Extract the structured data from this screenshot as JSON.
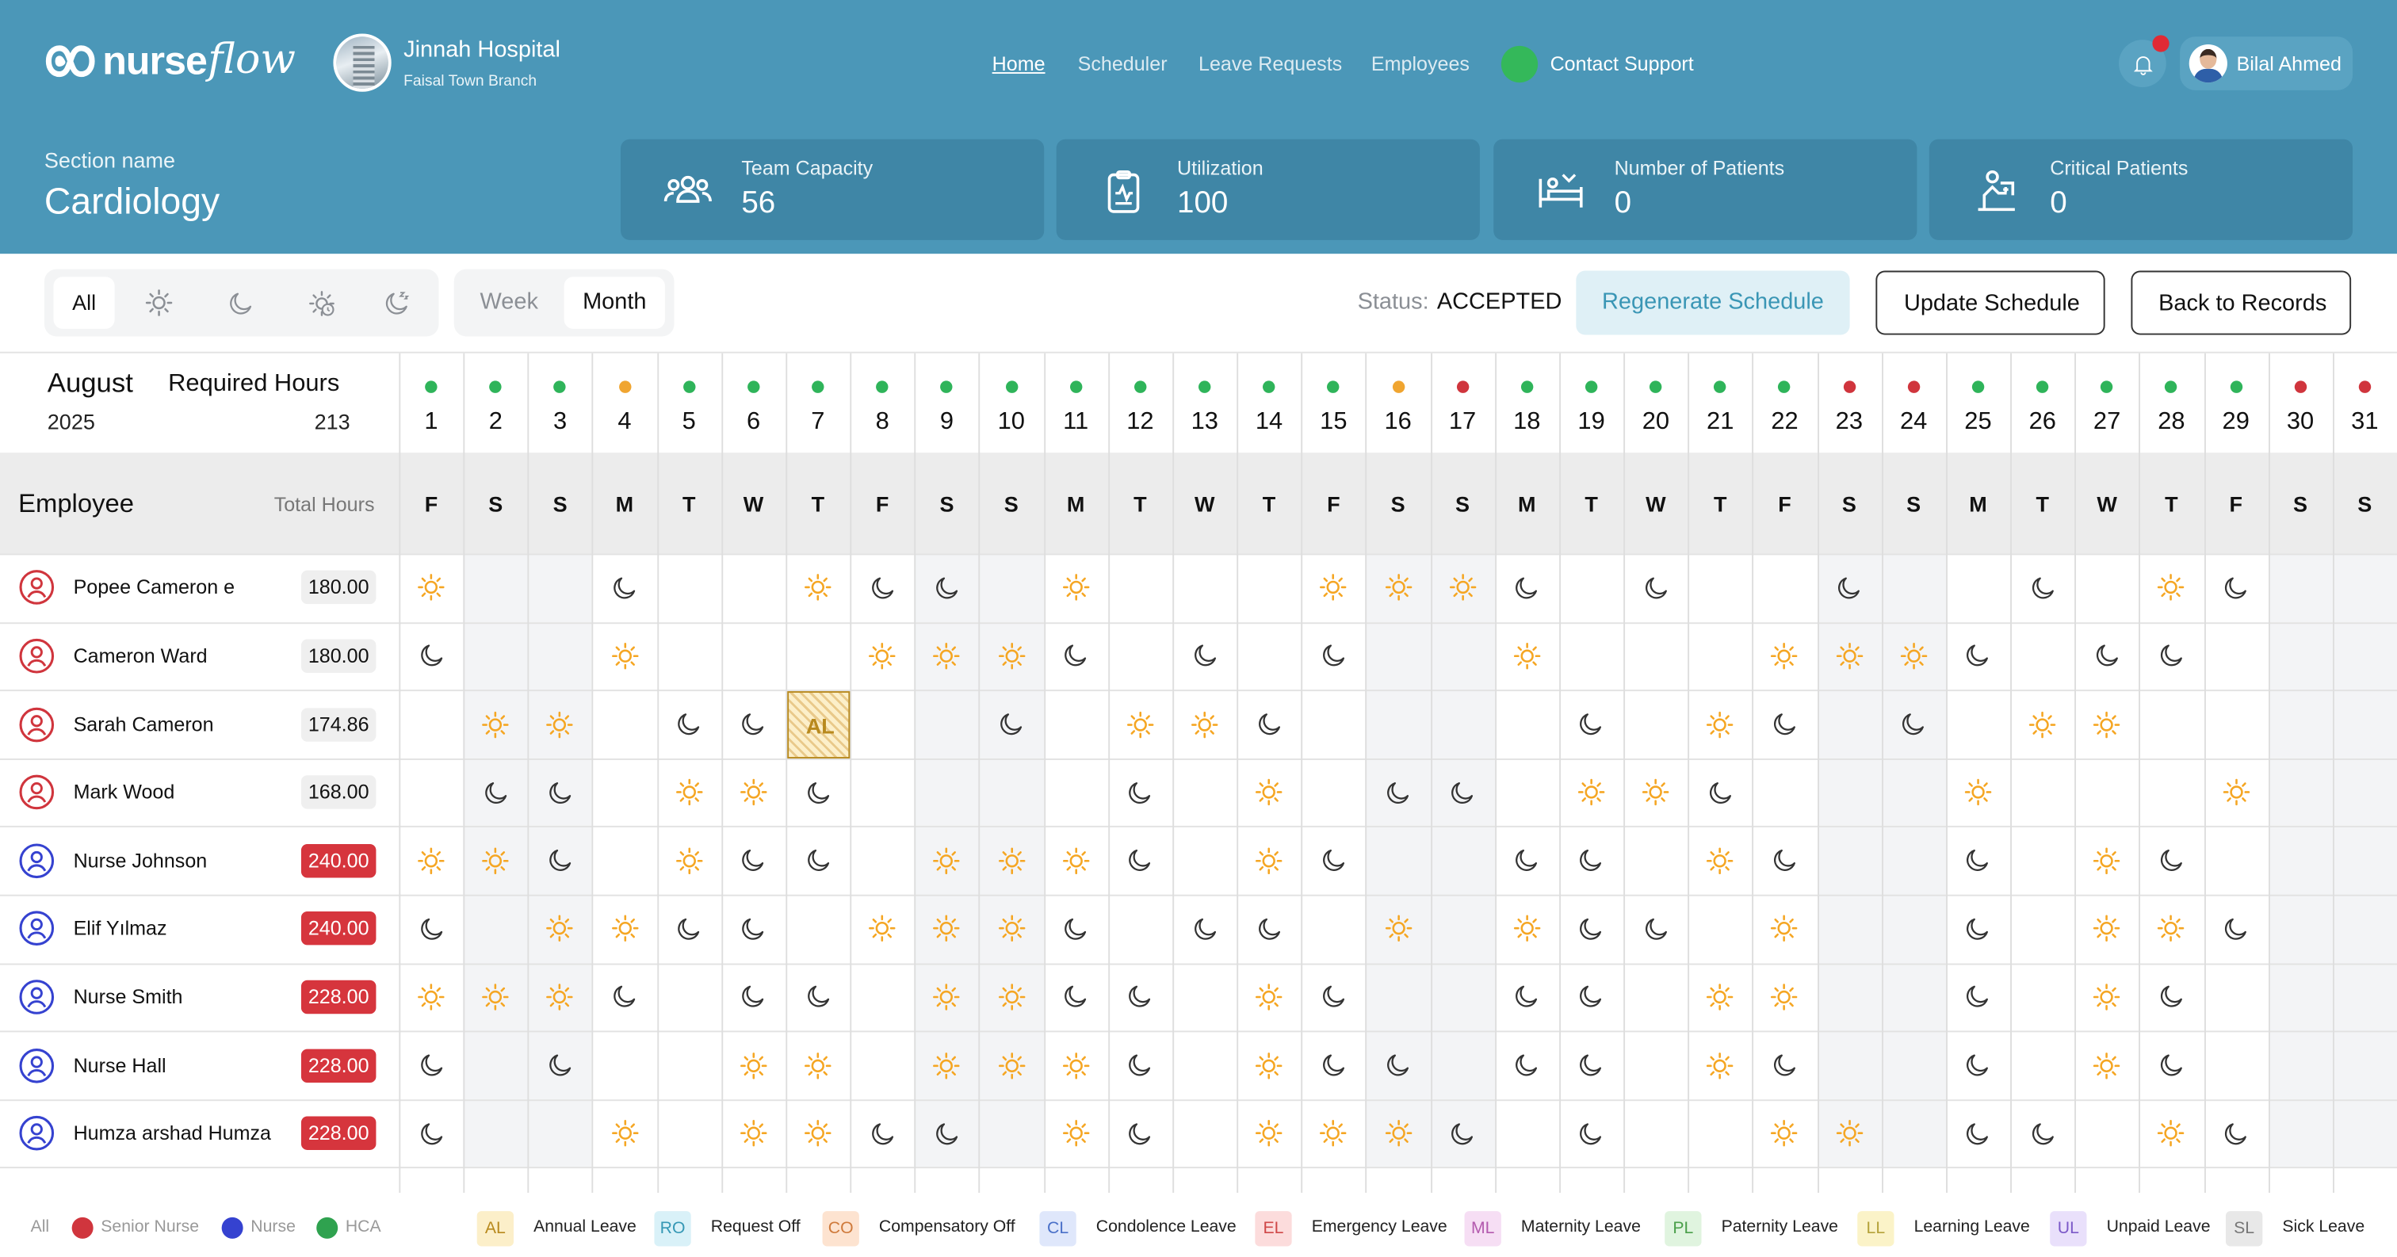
{
  "header": {
    "logo_a": "nurse",
    "logo_b": "flow",
    "hospital": "Jinnah Hospital",
    "branch": "Faisal Town Branch",
    "nav": [
      "Home",
      "Scheduler",
      "Leave Requests",
      "Employees"
    ],
    "support": "Contact Support",
    "user": "Bilal Ahmed"
  },
  "section": {
    "label": "Section name",
    "name": "Cardiology"
  },
  "stats": [
    {
      "label": "Team Capacity",
      "value": 56,
      "icon": "team"
    },
    {
      "label": "Utilization",
      "value": 100,
      "icon": "clipboard"
    },
    {
      "label": "Number of Patients",
      "value": 0,
      "icon": "bed"
    },
    {
      "label": "Critical Patients",
      "value": 0,
      "icon": "critical"
    }
  ],
  "toolbar": {
    "filter": "All",
    "views": [
      "Week",
      "Month"
    ],
    "active_view_index": 1,
    "status_label": "Status:",
    "status": "ACCEPTED",
    "buttons": [
      "Regenerate Schedule",
      "Update Schedule",
      "Back to Records"
    ]
  },
  "calendar": {
    "month": "August",
    "year": "2025",
    "required_label": "Required Hours",
    "required_hours": 213,
    "employee_label": "Employee",
    "total_label": "Total Hours",
    "days": [
      1,
      2,
      3,
      4,
      5,
      6,
      7,
      8,
      9,
      10,
      11,
      12,
      13,
      14,
      15,
      16,
      17,
      18,
      19,
      20,
      21,
      22,
      23,
      24,
      25,
      26,
      27,
      28,
      29,
      30,
      31
    ],
    "weekdays": [
      "F",
      "S",
      "S",
      "M",
      "T",
      "W",
      "T",
      "F",
      "S",
      "S",
      "M",
      "T",
      "W",
      "T",
      "F",
      "S",
      "S",
      "M",
      "T",
      "W",
      "T",
      "F",
      "S",
      "S",
      "M",
      "T",
      "W",
      "T",
      "F",
      "S",
      "S"
    ],
    "day_status": [
      "#2fb45a",
      "#2fb45a",
      "#2fb45a",
      "#f0a530",
      "#2fb45a",
      "#2fb45a",
      "#2fb45a",
      "#2fb45a",
      "#2fb45a",
      "#2fb45a",
      "#2fb45a",
      "#2fb45a",
      "#2fb45a",
      "#2fb45a",
      "#2fb45a",
      "#f0a530",
      "#d0353d",
      "#2fb45a",
      "#2fb45a",
      "#2fb45a",
      "#2fb45a",
      "#2fb45a",
      "#d0353d",
      "#d0353d",
      "#2fb45a",
      "#2fb45a",
      "#2fb45a",
      "#2fb45a",
      "#2fb45a",
      "#d0353d",
      "#d0353d"
    ],
    "column_colors": [
      "#ffffff",
      "#f3f4f6",
      "#f3f4f6",
      "#ffffff",
      "#ffffff",
      "#ffffff",
      "#ffffff",
      "#ffffff",
      "#f3f4f6",
      "#f3f4f6",
      "#ffffff",
      "#ffffff",
      "#ffffff",
      "#ffffff",
      "#ffffff",
      "#f3f4f6",
      "#f3f4f6",
      "#ffffff",
      "#ffffff",
      "#ffffff",
      "#ffffff",
      "#ffffff",
      "#f3f4f6",
      "#f3f4f6",
      "#ffffff",
      "#ffffff",
      "#ffffff",
      "#ffffff",
      "#ffffff",
      "#f3f4f6",
      "#f3f4f6"
    ]
  },
  "employees": [
    {
      "name": "Popee Cameron e",
      "hours": "180.00",
      "role_color": "#d0353d",
      "badge": "#efefef",
      "shifts": [
        "sun",
        null,
        null,
        "moon",
        null,
        null,
        "sun",
        "moon",
        "moon",
        null,
        "sun",
        null,
        null,
        null,
        "sun",
        "sun",
        "sun",
        "moon",
        null,
        "moon",
        null,
        null,
        "moon",
        null,
        null,
        "moon",
        null,
        "sun",
        "moon",
        null,
        null
      ]
    },
    {
      "name": "Cameron Ward",
      "hours": "180.00",
      "role_color": "#d0353d",
      "badge": "#efefef",
      "shifts": [
        "moon",
        null,
        null,
        "sun",
        null,
        null,
        null,
        "sun",
        "sun",
        "sun",
        "moon",
        null,
        "moon",
        null,
        "moon",
        null,
        null,
        "sun",
        null,
        null,
        null,
        "sun",
        "sun",
        "sun",
        "moon",
        null,
        "moon",
        "moon",
        null,
        null,
        null
      ]
    },
    {
      "name": "Sarah Cameron",
      "hours": "174.86",
      "role_color": "#d0353d",
      "badge": "#efefef",
      "shifts": [
        null,
        "sun",
        "sun",
        null,
        "moon",
        "moon",
        "AL",
        null,
        null,
        "moon",
        null,
        "sun",
        "sun",
        "moon",
        null,
        null,
        null,
        null,
        "moon",
        null,
        "sun",
        "moon",
        null,
        "moon",
        null,
        "sun",
        "sun",
        null,
        null,
        null,
        null
      ]
    },
    {
      "name": "Mark Wood",
      "hours": "168.00",
      "role_color": "#d0353d",
      "badge": "#efefef",
      "shifts": [
        null,
        "moon",
        "moon",
        null,
        "sun",
        "sun",
        "moon",
        null,
        null,
        null,
        null,
        "moon",
        null,
        "sun",
        null,
        "moon",
        "moon",
        null,
        "sun",
        "sun",
        "moon",
        null,
        null,
        null,
        "sun",
        null,
        null,
        null,
        "sun",
        null,
        null
      ]
    },
    {
      "name": "Nurse Johnson",
      "hours": "240.00",
      "role_color": "#3542d0",
      "badge": "#d6353d",
      "shifts": [
        "sun",
        "sun",
        "moon",
        null,
        "sun",
        "moon",
        "moon",
        null,
        "sun",
        "sun",
        "sun",
        "moon",
        null,
        "sun",
        "moon",
        null,
        null,
        "moon",
        "moon",
        null,
        "sun",
        "moon",
        null,
        null,
        "moon",
        null,
        "sun",
        "moon",
        null,
        null,
        null
      ]
    },
    {
      "name": "Elif Yılmaz",
      "hours": "240.00",
      "role_color": "#3542d0",
      "badge": "#d6353d",
      "shifts": [
        "moon",
        null,
        "sun",
        "sun",
        "moon",
        "moon",
        null,
        "sun",
        "sun",
        "sun",
        "moon",
        null,
        "moon",
        "moon",
        null,
        "sun",
        null,
        "sun",
        "moon",
        "moon",
        null,
        "sun",
        null,
        null,
        "moon",
        null,
        "sun",
        "sun",
        "moon",
        null,
        null
      ]
    },
    {
      "name": "Nurse Smith",
      "hours": "228.00",
      "role_color": "#3542d0",
      "badge": "#d6353d",
      "shifts": [
        "sun",
        "sun",
        "sun",
        "moon",
        null,
        "moon",
        "moon",
        null,
        "sun",
        "sun",
        "moon",
        "moon",
        null,
        "sun",
        "moon",
        null,
        null,
        "moon",
        "moon",
        null,
        "sun",
        "sun",
        null,
        null,
        "moon",
        null,
        "sun",
        "moon",
        null,
        null,
        null
      ]
    },
    {
      "name": "Nurse Hall",
      "hours": "228.00",
      "role_color": "#3542d0",
      "badge": "#d6353d",
      "shifts": [
        "moon",
        null,
        "moon",
        null,
        null,
        "sun",
        "sun",
        null,
        "sun",
        "sun",
        "sun",
        "moon",
        null,
        "sun",
        "moon",
        "moon",
        null,
        "moon",
        "moon",
        null,
        "sun",
        "moon",
        null,
        null,
        "moon",
        null,
        "sun",
        "moon",
        null,
        null,
        null
      ]
    },
    {
      "name": "Humza arshad Humza",
      "hours": "228.00",
      "role_color": "#3542d0",
      "badge": "#d6353d",
      "shifts": [
        "moon",
        null,
        null,
        "sun",
        null,
        "sun",
        "sun",
        "moon",
        "moon",
        null,
        "sun",
        "moon",
        null,
        "sun",
        "sun",
        "sun",
        "moon",
        null,
        "moon",
        null,
        null,
        "sun",
        "sun",
        null,
        "moon",
        "moon",
        null,
        "sun",
        "moon",
        null,
        null
      ]
    }
  ],
  "legend": {
    "all": "All",
    "roles": [
      {
        "name": "Senior Nurse",
        "color": "#d0353d"
      },
      {
        "name": "Nurse",
        "color": "#3542d0"
      },
      {
        "name": "HCA",
        "color": "#2fa24f"
      }
    ],
    "leaves": [
      {
        "code": "AL",
        "name": "Annual Leave",
        "bg": "#fcefc9",
        "fg": "#b8891d"
      },
      {
        "code": "RO",
        "name": "Request Off",
        "bg": "#d9f1f8",
        "fg": "#3698b5"
      },
      {
        "code": "CO",
        "name": "Compensatory Off",
        "bg": "#fde3d0",
        "fg": "#cf7a3b"
      },
      {
        "code": "CL",
        "name": "Condolence Leave",
        "bg": "#dfe7fb",
        "fg": "#4a70c8"
      },
      {
        "code": "EL",
        "name": "Emergency Leave",
        "bg": "#fcdcdc",
        "fg": "#cf4848"
      },
      {
        "code": "ML",
        "name": "Maternity Leave",
        "bg": "#f6def4",
        "fg": "#b35aae"
      },
      {
        "code": "PL",
        "name": "Paternity Leave",
        "bg": "#e0f4df",
        "fg": "#4a9f4a"
      },
      {
        "code": "LL",
        "name": "Learning Leave",
        "bg": "#fbf3c8",
        "fg": "#b5a23a"
      },
      {
        "code": "UL",
        "name": "Unpaid Leave",
        "bg": "#e9e0fb",
        "fg": "#7c5ac8"
      },
      {
        "code": "SL",
        "name": "Sick Leave",
        "bg": "#e8e8e8",
        "fg": "#777777"
      }
    ]
  }
}
